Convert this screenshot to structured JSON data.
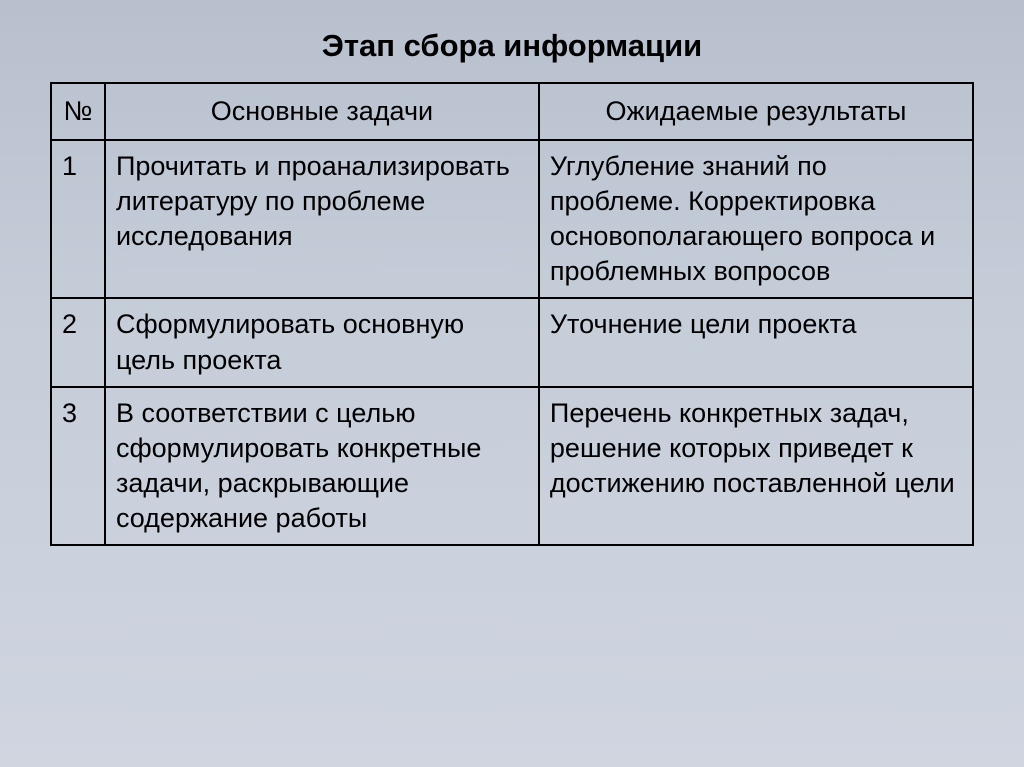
{
  "title": "Этап сбора информации",
  "table": {
    "headers": {
      "num": "№",
      "tasks": "Основные задачи",
      "results": "Ожидаемые результаты"
    },
    "rows": [
      {
        "num": "1",
        "task": "Прочитать и проанализировать литературу по проблеме исследования",
        "result": "Углубление знаний по проблеме. Корректировка основополагающего вопроса и проблемных вопросов"
      },
      {
        "num": "2",
        "task": "Сформулировать основную цель проекта",
        "result": "Уточнение цели проекта"
      },
      {
        "num": "3",
        "task": "В соответствии с целью сформулировать конкретные задачи, раскрывающие содержание работы",
        "result": "Перечень конкретных задач, решение которых приведет к достижению поставленной цели"
      }
    ]
  },
  "style": {
    "background_gradient_top": "#b8c0ce",
    "background_gradient_mid": "#c5cdd9",
    "background_gradient_bottom": "#d0d5e0",
    "border_color": "#000000",
    "text_color": "#000000",
    "title_fontsize": 31,
    "cell_fontsize": 27,
    "col_widths": {
      "num": 54,
      "tasks": 435,
      "results": 435
    }
  }
}
